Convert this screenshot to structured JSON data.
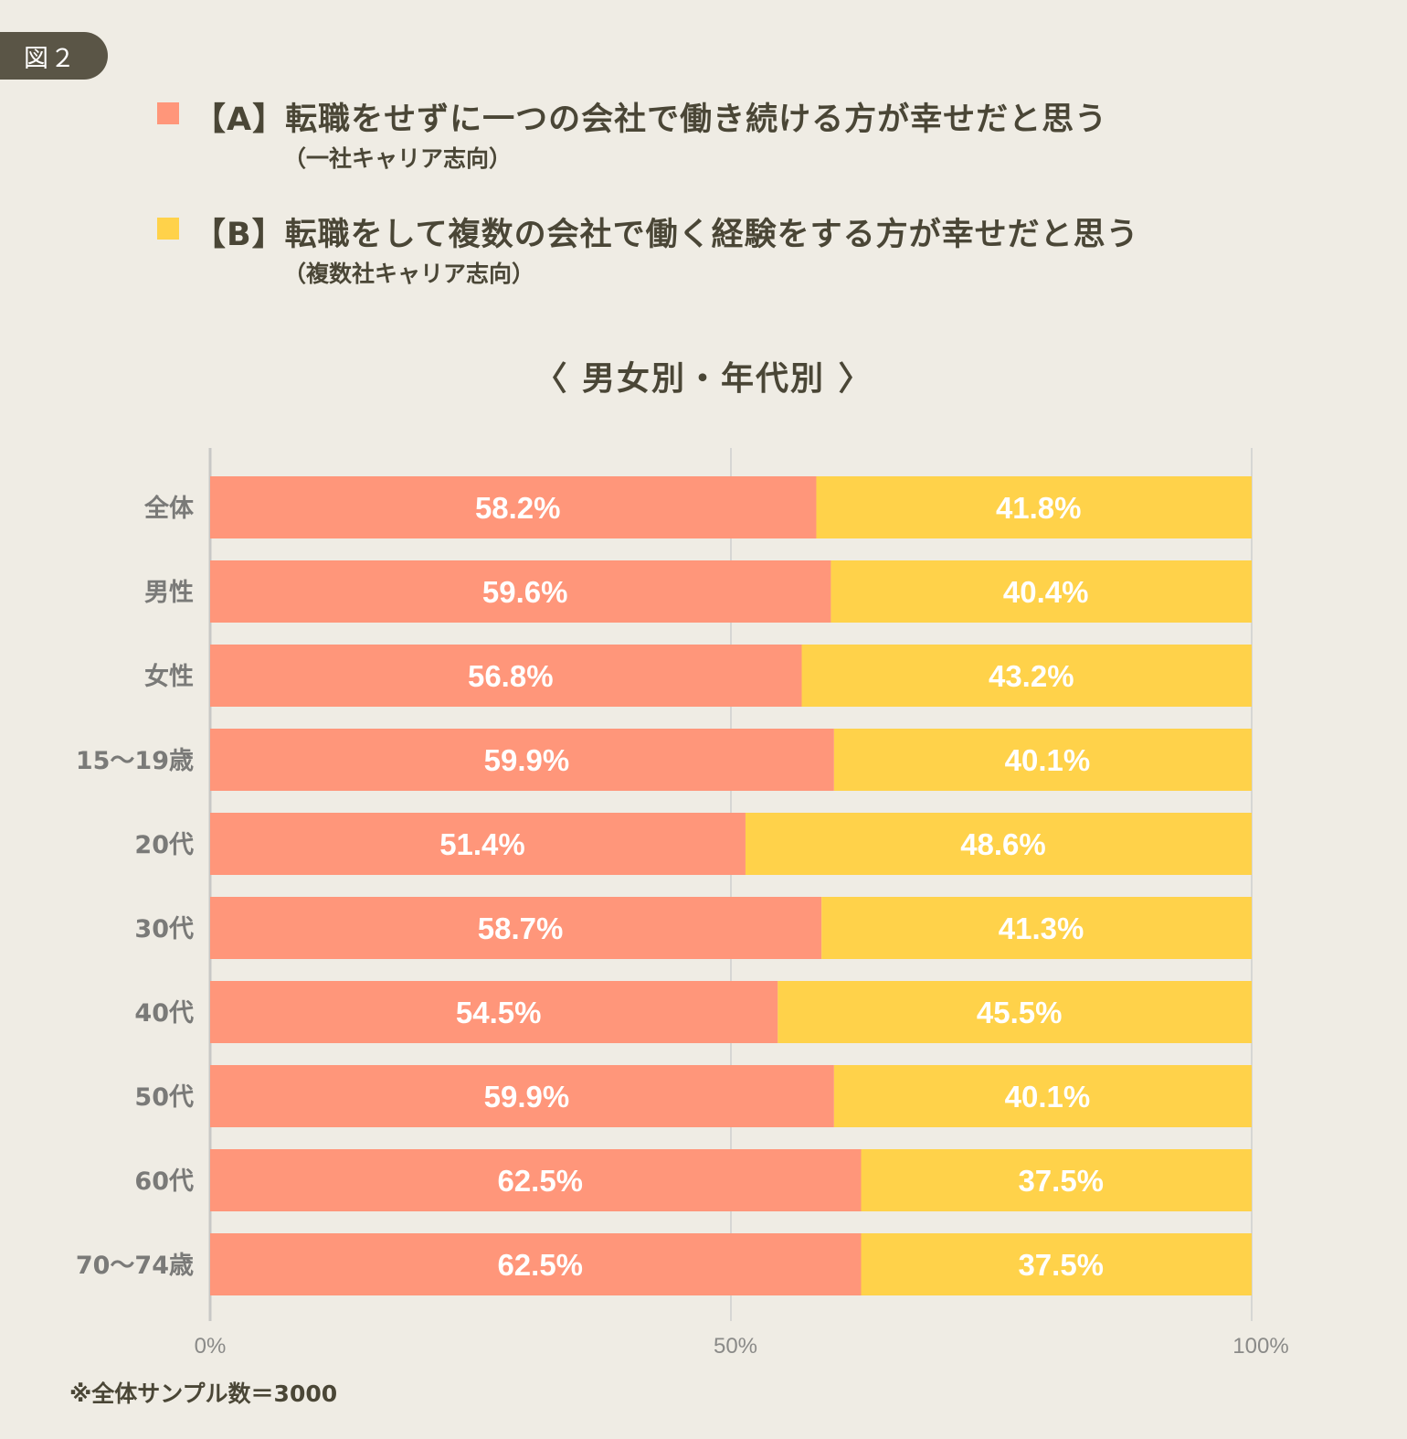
{
  "figure_label": "図２",
  "legend": [
    {
      "key": "A",
      "text": "【A】転職をせずに一つの会社で働き続ける方が幸せだと思う",
      "sub": "（一社キャリア志向）",
      "color": "#ff967a"
    },
    {
      "key": "B",
      "text": "【B】転職をして複数の会社で働く経験をする方が幸せだと思う",
      "sub": "（複数社キャリア志向）",
      "color": "#ffd24a"
    }
  ],
  "section_title": "〈 男女別・年代別 〉",
  "footnote": "※全体サンプル数＝3000",
  "chart_data": {
    "type": "bar",
    "orientation": "horizontal",
    "stacked": true,
    "title": "〈男女別・年代別〉",
    "xlabel": "",
    "ylabel": "",
    "xlim": [
      0,
      100
    ],
    "x_ticks": [
      0,
      50,
      100
    ],
    "x_tick_labels": [
      "0%",
      "50%",
      "100%"
    ],
    "grid": true,
    "legend_position": "top",
    "categories": [
      "全体",
      "男性",
      "女性",
      "15～19歳",
      "20代",
      "30代",
      "40代",
      "50代",
      "60代",
      "70～74歳"
    ],
    "series": [
      {
        "name": "【A】転職をせずに一つの会社で働き続ける方が幸せだと思う（一社キャリア志向）",
        "color": "#ff967a",
        "values": [
          58.2,
          59.6,
          56.8,
          59.9,
          51.4,
          58.7,
          54.5,
          59.9,
          62.5,
          62.5
        ]
      },
      {
        "name": "【B】転職をして複数の会社で働く経験をする方が幸せだと思う（複数社キャリア志向）",
        "color": "#ffd24a",
        "values": [
          41.8,
          40.4,
          43.2,
          40.1,
          48.6,
          41.3,
          45.5,
          40.1,
          37.5,
          37.5
        ]
      }
    ],
    "value_label_suffix": "%",
    "gridline_color": "#d6d6d4",
    "axis_color": "#c8c8c6"
  }
}
